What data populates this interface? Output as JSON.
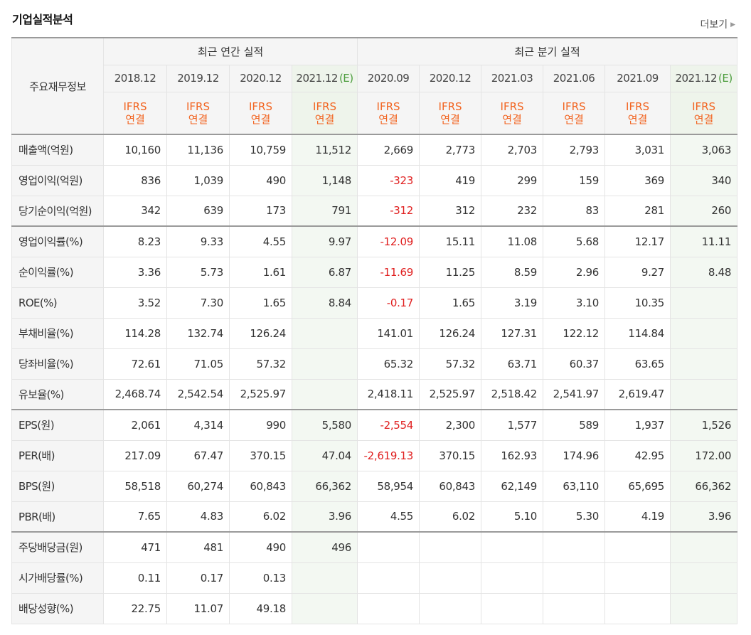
{
  "title": "기업실적분석",
  "more_label": "더보기",
  "header": {
    "row_label": "주요재무정보",
    "annual_group": "최근 연간 실적",
    "quarter_group": "최근 분기 실적",
    "periods": [
      {
        "label": "2018.12",
        "est": ""
      },
      {
        "label": "2019.12",
        "est": ""
      },
      {
        "label": "2020.12",
        "est": ""
      },
      {
        "label": "2021.12",
        "est": "(E)"
      },
      {
        "label": "2020.09",
        "est": ""
      },
      {
        "label": "2020.12",
        "est": ""
      },
      {
        "label": "2021.03",
        "est": ""
      },
      {
        "label": "2021.06",
        "est": ""
      },
      {
        "label": "2021.09",
        "est": ""
      },
      {
        "label": "2021.12",
        "est": "(E)"
      }
    ],
    "ifrs_line1": "IFRS",
    "ifrs_line2": "연결"
  },
  "rows": [
    {
      "label": "매출액(억원)",
      "values": [
        "10,160",
        "11,136",
        "10,759",
        "11,512",
        "2,669",
        "2,773",
        "2,703",
        "2,793",
        "3,031",
        "3,063"
      ]
    },
    {
      "label": "영업이익(억원)",
      "values": [
        "836",
        "1,039",
        "490",
        "1,148",
        "-323",
        "419",
        "299",
        "159",
        "369",
        "340"
      ]
    },
    {
      "label": "당기순이익(억원)",
      "values": [
        "342",
        "639",
        "173",
        "791",
        "-312",
        "312",
        "232",
        "83",
        "281",
        "260"
      ]
    },
    {
      "label": "영업이익률(%)",
      "values": [
        "8.23",
        "9.33",
        "4.55",
        "9.97",
        "-12.09",
        "15.11",
        "11.08",
        "5.68",
        "12.17",
        "11.11"
      ]
    },
    {
      "label": "순이익률(%)",
      "values": [
        "3.36",
        "5.73",
        "1.61",
        "6.87",
        "-11.69",
        "11.25",
        "8.59",
        "2.96",
        "9.27",
        "8.48"
      ]
    },
    {
      "label": "ROE(%)",
      "values": [
        "3.52",
        "7.30",
        "1.65",
        "8.84",
        "-0.17",
        "1.65",
        "3.19",
        "3.10",
        "10.35",
        ""
      ]
    },
    {
      "label": "부채비율(%)",
      "values": [
        "114.28",
        "132.74",
        "126.24",
        "",
        "141.01",
        "126.24",
        "127.31",
        "122.12",
        "114.84",
        ""
      ]
    },
    {
      "label": "당좌비율(%)",
      "values": [
        "72.61",
        "71.05",
        "57.32",
        "",
        "65.32",
        "57.32",
        "63.71",
        "60.37",
        "63.65",
        ""
      ]
    },
    {
      "label": "유보율(%)",
      "values": [
        "2,468.74",
        "2,542.54",
        "2,525.97",
        "",
        "2,418.11",
        "2,525.97",
        "2,518.42",
        "2,541.97",
        "2,619.47",
        ""
      ]
    },
    {
      "label": "EPS(원)",
      "values": [
        "2,061",
        "4,314",
        "990",
        "5,580",
        "-2,554",
        "2,300",
        "1,577",
        "589",
        "1,937",
        "1,526"
      ]
    },
    {
      "label": "PER(배)",
      "values": [
        "217.09",
        "67.47",
        "370.15",
        "47.04",
        "-2,619.13",
        "370.15",
        "162.93",
        "174.96",
        "42.95",
        "172.00"
      ]
    },
    {
      "label": "BPS(원)",
      "values": [
        "58,518",
        "60,274",
        "60,843",
        "66,362",
        "58,954",
        "60,843",
        "62,149",
        "63,110",
        "65,695",
        "66,362"
      ]
    },
    {
      "label": "PBR(배)",
      "values": [
        "7.65",
        "4.83",
        "6.02",
        "3.96",
        "4.55",
        "6.02",
        "5.10",
        "5.30",
        "4.19",
        "3.96"
      ]
    },
    {
      "label": "주당배당금(원)",
      "values": [
        "471",
        "481",
        "490",
        "496",
        "",
        "",
        "",
        "",
        "",
        ""
      ]
    },
    {
      "label": "시가배당률(%)",
      "values": [
        "0.11",
        "0.17",
        "0.13",
        "",
        "",
        "",
        "",
        "",
        "",
        ""
      ]
    },
    {
      "label": "배당성향(%)",
      "values": [
        "22.75",
        "11.07",
        "49.18",
        "",
        "",
        "",
        "",
        "",
        "",
        ""
      ]
    }
  ]
}
